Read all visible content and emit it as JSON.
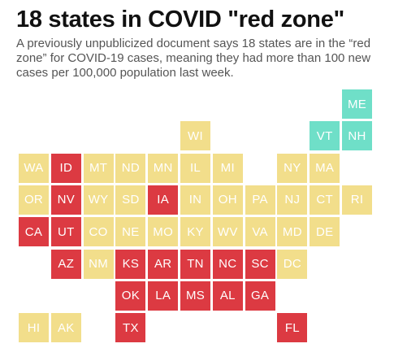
{
  "title": "18 states in COVID \"red zone\"",
  "subtitle": "A previously unpublicized document says 18 states are in the “red zone” for COVID-19 cases, meaning they had more than 100 new cases per 100,000 population last week.",
  "colors": {
    "red_zone": "#dc3a42",
    "yellow": "#f2de8b",
    "teal": "#6fdfc8"
  },
  "states": [
    {
      "abbr": "ME",
      "zone": "teal",
      "row": 0,
      "col": 10
    },
    {
      "abbr": "WI",
      "zone": "yellow",
      "row": 1,
      "col": 5
    },
    {
      "abbr": "VT",
      "zone": "teal",
      "row": 1,
      "col": 9
    },
    {
      "abbr": "NH",
      "zone": "teal",
      "row": 1,
      "col": 10
    },
    {
      "abbr": "WA",
      "zone": "yellow",
      "row": 2,
      "col": 0
    },
    {
      "abbr": "ID",
      "zone": "red_zone",
      "row": 2,
      "col": 1
    },
    {
      "abbr": "MT",
      "zone": "yellow",
      "row": 2,
      "col": 2
    },
    {
      "abbr": "ND",
      "zone": "yellow",
      "row": 2,
      "col": 3
    },
    {
      "abbr": "MN",
      "zone": "yellow",
      "row": 2,
      "col": 4
    },
    {
      "abbr": "IL",
      "zone": "yellow",
      "row": 2,
      "col": 5
    },
    {
      "abbr": "MI",
      "zone": "yellow",
      "row": 2,
      "col": 6
    },
    {
      "abbr": "NY",
      "zone": "yellow",
      "row": 2,
      "col": 8
    },
    {
      "abbr": "MA",
      "zone": "yellow",
      "row": 2,
      "col": 9
    },
    {
      "abbr": "OR",
      "zone": "yellow",
      "row": 3,
      "col": 0
    },
    {
      "abbr": "NV",
      "zone": "red_zone",
      "row": 3,
      "col": 1
    },
    {
      "abbr": "WY",
      "zone": "yellow",
      "row": 3,
      "col": 2
    },
    {
      "abbr": "SD",
      "zone": "yellow",
      "row": 3,
      "col": 3
    },
    {
      "abbr": "IA",
      "zone": "red_zone",
      "row": 3,
      "col": 4
    },
    {
      "abbr": "IN",
      "zone": "yellow",
      "row": 3,
      "col": 5
    },
    {
      "abbr": "OH",
      "zone": "yellow",
      "row": 3,
      "col": 6
    },
    {
      "abbr": "PA",
      "zone": "yellow",
      "row": 3,
      "col": 7
    },
    {
      "abbr": "NJ",
      "zone": "yellow",
      "row": 3,
      "col": 8
    },
    {
      "abbr": "CT",
      "zone": "yellow",
      "row": 3,
      "col": 9
    },
    {
      "abbr": "RI",
      "zone": "yellow",
      "row": 3,
      "col": 10
    },
    {
      "abbr": "CA",
      "zone": "red_zone",
      "row": 4,
      "col": 0
    },
    {
      "abbr": "UT",
      "zone": "red_zone",
      "row": 4,
      "col": 1
    },
    {
      "abbr": "CO",
      "zone": "yellow",
      "row": 4,
      "col": 2
    },
    {
      "abbr": "NE",
      "zone": "yellow",
      "row": 4,
      "col": 3
    },
    {
      "abbr": "MO",
      "zone": "yellow",
      "row": 4,
      "col": 4
    },
    {
      "abbr": "KY",
      "zone": "yellow",
      "row": 4,
      "col": 5
    },
    {
      "abbr": "WV",
      "zone": "yellow",
      "row": 4,
      "col": 6
    },
    {
      "abbr": "VA",
      "zone": "yellow",
      "row": 4,
      "col": 7
    },
    {
      "abbr": "MD",
      "zone": "yellow",
      "row": 4,
      "col": 8
    },
    {
      "abbr": "DE",
      "zone": "yellow",
      "row": 4,
      "col": 9
    },
    {
      "abbr": "AZ",
      "zone": "red_zone",
      "row": 5,
      "col": 1
    },
    {
      "abbr": "NM",
      "zone": "yellow",
      "row": 5,
      "col": 2
    },
    {
      "abbr": "KS",
      "zone": "red_zone",
      "row": 5,
      "col": 3
    },
    {
      "abbr": "AR",
      "zone": "red_zone",
      "row": 5,
      "col": 4
    },
    {
      "abbr": "TN",
      "zone": "red_zone",
      "row": 5,
      "col": 5
    },
    {
      "abbr": "NC",
      "zone": "red_zone",
      "row": 5,
      "col": 6
    },
    {
      "abbr": "SC",
      "zone": "red_zone",
      "row": 5,
      "col": 7
    },
    {
      "abbr": "DC",
      "zone": "yellow",
      "row": 5,
      "col": 8
    },
    {
      "abbr": "OK",
      "zone": "red_zone",
      "row": 6,
      "col": 3
    },
    {
      "abbr": "LA",
      "zone": "red_zone",
      "row": 6,
      "col": 4
    },
    {
      "abbr": "MS",
      "zone": "red_zone",
      "row": 6,
      "col": 5
    },
    {
      "abbr": "AL",
      "zone": "red_zone",
      "row": 6,
      "col": 6
    },
    {
      "abbr": "GA",
      "zone": "red_zone",
      "row": 6,
      "col": 7
    },
    {
      "abbr": "HI",
      "zone": "yellow",
      "row": 7,
      "col": 0
    },
    {
      "abbr": "AK",
      "zone": "yellow",
      "row": 7,
      "col": 1
    },
    {
      "abbr": "TX",
      "zone": "red_zone",
      "row": 7,
      "col": 3
    },
    {
      "abbr": "FL",
      "zone": "red_zone",
      "row": 7,
      "col": 8
    }
  ]
}
